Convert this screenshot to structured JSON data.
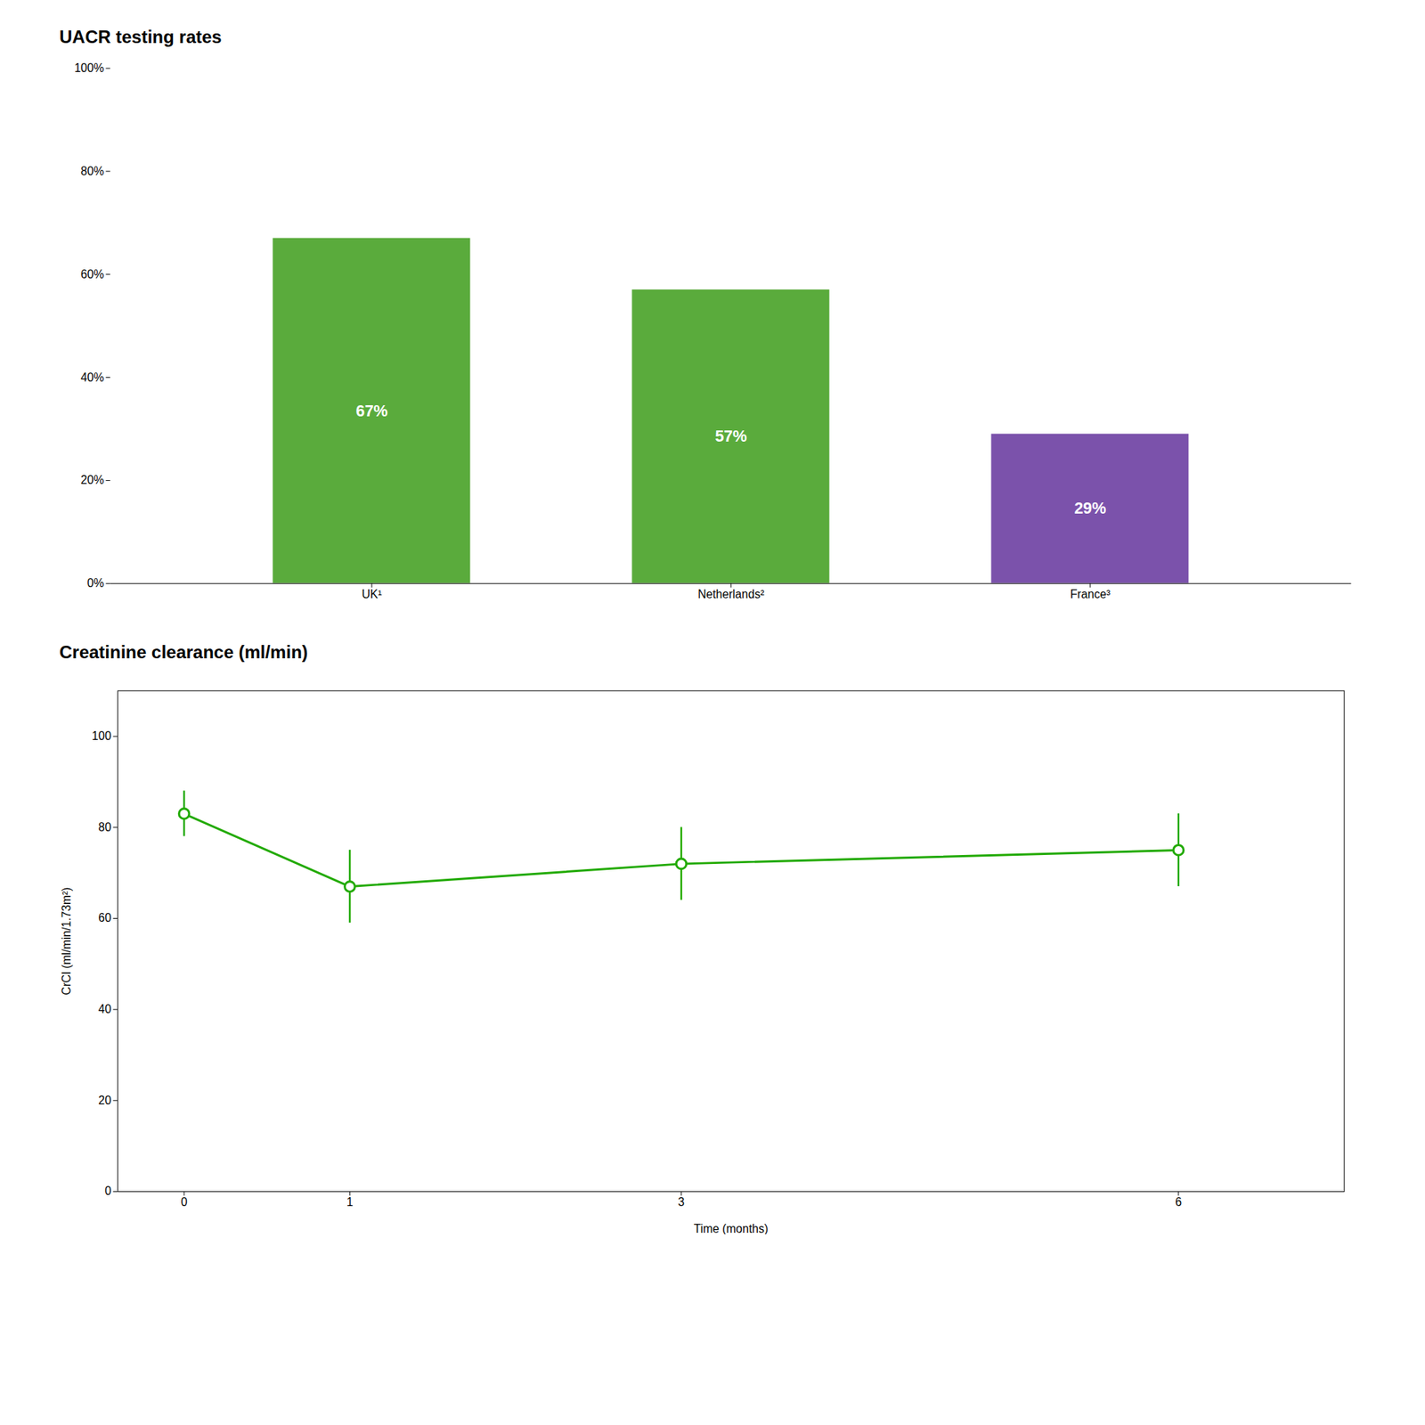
{
  "chart_data": [
    {
      "type": "bar",
      "title": "UACR testing rates",
      "categories": [
        "UK¹",
        "Netherlands²",
        "France³"
      ],
      "values": [
        67,
        57,
        29
      ],
      "value_labels": [
        "67%",
        "57%",
        "29%"
      ],
      "colors": [
        "#5aab3c",
        "#5aab3c",
        "#7b52ab"
      ],
      "ylim": [
        0,
        100
      ],
      "yticks": [
        {
          "value": 0,
          "label": "0%"
        },
        {
          "value": 20,
          "label": "20%"
        },
        {
          "value": 40,
          "label": "40%"
        },
        {
          "value": 60,
          "label": "60%"
        },
        {
          "value": 80,
          "label": "80%"
        },
        {
          "value": 100,
          "label": "100%"
        }
      ],
      "data_labels": true,
      "grid": false
    },
    {
      "type": "line",
      "title": "Creatinine clearance (ml/min)",
      "x_label": "Time (months)",
      "y_label": "CrCl (ml/min/1.73m²)",
      "x": [
        0,
        1,
        3,
        6
      ],
      "values": [
        83,
        67,
        72,
        75
      ],
      "yerr": [
        5,
        8,
        8,
        8
      ],
      "color": "#22aa00",
      "marker": "circle",
      "line_style": "solid",
      "xlim": [
        -0.4,
        7
      ],
      "xticks": [
        0,
        1,
        3,
        6
      ],
      "ylim": [
        0,
        110
      ],
      "yticks": [
        0,
        20,
        40,
        60,
        80,
        100
      ],
      "grid": false
    }
  ]
}
